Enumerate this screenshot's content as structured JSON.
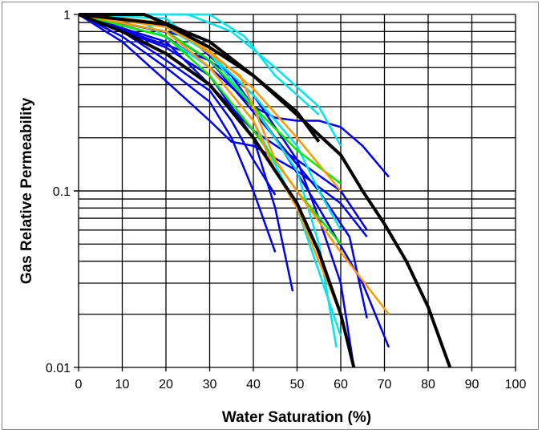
{
  "chart_data": {
    "type": "line",
    "title": "",
    "xlabel": "Water Saturation (%)",
    "ylabel": "Gas Relative Permeability",
    "xlim": [
      0,
      100
    ],
    "ylim": [
      0.01,
      1
    ],
    "yscale": "log",
    "grid": true,
    "legend": "none",
    "xticks": [
      "0",
      "10",
      "20",
      "30",
      "40",
      "50",
      "60",
      "70",
      "80",
      "90",
      "100"
    ],
    "yticks": [
      "0.01",
      "0.1",
      "1"
    ],
    "series": [
      {
        "color": "#0000ee",
        "points": [
          [
            0,
            1
          ],
          [
            10,
            0.75
          ],
          [
            20,
            0.5
          ],
          [
            30,
            0.32
          ],
          [
            35,
            0.2
          ],
          [
            40,
            0.1
          ],
          [
            45,
            0.045
          ]
        ]
      },
      {
        "color": "#0000ee",
        "points": [
          [
            0,
            1
          ],
          [
            10,
            0.8
          ],
          [
            20,
            0.55
          ],
          [
            30,
            0.37
          ],
          [
            35,
            0.25
          ],
          [
            40,
            0.15
          ],
          [
            45,
            0.095
          ]
        ]
      },
      {
        "color": "#0000ee",
        "points": [
          [
            0,
            1
          ],
          [
            10,
            0.7
          ],
          [
            20,
            0.42
          ],
          [
            30,
            0.25
          ],
          [
            35,
            0.19
          ],
          [
            40,
            0.18
          ],
          [
            50,
            0.13
          ],
          [
            60,
            0.085
          ],
          [
            66,
            0.055
          ]
        ]
      },
      {
        "color": "#0000ee",
        "points": [
          [
            0,
            1
          ],
          [
            20,
            0.7
          ],
          [
            30,
            0.4
          ],
          [
            40,
            0.22
          ],
          [
            50,
            0.15
          ],
          [
            60,
            0.1
          ],
          [
            66,
            0.06
          ]
        ]
      },
      {
        "color": "#0000ee",
        "points": [
          [
            0,
            1
          ],
          [
            20,
            0.75
          ],
          [
            30,
            0.5
          ],
          [
            40,
            0.3
          ],
          [
            45,
            0.26
          ],
          [
            50,
            0.25
          ],
          [
            55,
            0.25
          ],
          [
            60,
            0.23
          ],
          [
            65,
            0.18
          ],
          [
            71,
            0.12
          ]
        ]
      },
      {
        "color": "#0000ee",
        "points": [
          [
            0,
            1
          ],
          [
            20,
            0.65
          ],
          [
            30,
            0.45
          ],
          [
            40,
            0.2
          ],
          [
            45,
            0.08
          ],
          [
            49,
            0.027
          ]
        ]
      },
      {
        "color": "#0000ee",
        "points": [
          [
            0,
            1
          ],
          [
            20,
            0.8
          ],
          [
            35,
            0.45
          ],
          [
            45,
            0.2
          ],
          [
            55,
            0.08
          ],
          [
            65,
            0.03
          ],
          [
            71,
            0.013
          ]
        ]
      },
      {
        "color": "#0000ee",
        "points": [
          [
            0,
            1
          ],
          [
            25,
            0.75
          ],
          [
            40,
            0.35
          ],
          [
            50,
            0.15
          ],
          [
            55,
            0.07
          ],
          [
            60,
            0.03
          ],
          [
            63,
            0.01
          ]
        ]
      },
      {
        "color": "#0000ee",
        "points": [
          [
            0,
            1
          ],
          [
            30,
            0.55
          ],
          [
            45,
            0.2
          ],
          [
            55,
            0.1
          ],
          [
            62,
            0.055
          ],
          [
            66,
            0.019
          ]
        ]
      },
      {
        "color": "#00e5ee",
        "points": [
          [
            0,
            1
          ],
          [
            25,
            1
          ],
          [
            35,
            0.8
          ],
          [
            45,
            0.5
          ],
          [
            55,
            0.3
          ],
          [
            60,
            0.18
          ]
        ]
      },
      {
        "color": "#00e5ee",
        "points": [
          [
            0,
            1
          ],
          [
            30,
            1
          ],
          [
            38,
            0.75
          ],
          [
            45,
            0.45
          ],
          [
            50,
            0.35
          ],
          [
            55,
            0.27
          ]
        ]
      },
      {
        "color": "#00e5ee",
        "points": [
          [
            0,
            1
          ],
          [
            20,
            0.95
          ],
          [
            30,
            0.6
          ],
          [
            40,
            0.3
          ],
          [
            50,
            0.13
          ],
          [
            55,
            0.05
          ],
          [
            59,
            0.013
          ]
        ]
      },
      {
        "color": "#00e5ee",
        "points": [
          [
            0,
            1
          ],
          [
            15,
            0.9
          ],
          [
            30,
            0.5
          ],
          [
            40,
            0.25
          ],
          [
            50,
            0.08
          ],
          [
            55,
            0.035
          ],
          [
            60,
            0.015
          ]
        ]
      },
      {
        "color": "#00e5ee",
        "points": [
          [
            0,
            1
          ],
          [
            20,
            0.85
          ],
          [
            30,
            0.6
          ],
          [
            40,
            0.35
          ],
          [
            50,
            0.18
          ],
          [
            55,
            0.1
          ],
          [
            60,
            0.06
          ]
        ]
      },
      {
        "color": "#00ee00",
        "points": [
          [
            0,
            1
          ],
          [
            20,
            0.8
          ],
          [
            30,
            0.55
          ],
          [
            40,
            0.3
          ],
          [
            50,
            0.17
          ],
          [
            60,
            0.11
          ]
        ]
      },
      {
        "color": "#00ee00",
        "points": [
          [
            0,
            1
          ],
          [
            20,
            0.75
          ],
          [
            30,
            0.45
          ],
          [
            40,
            0.22
          ],
          [
            50,
            0.1
          ],
          [
            60,
            0.05
          ]
        ]
      },
      {
        "color": "#ff9900",
        "points": [
          [
            0,
            1
          ],
          [
            20,
            0.85
          ],
          [
            30,
            0.62
          ],
          [
            40,
            0.38
          ],
          [
            50,
            0.2
          ],
          [
            60,
            0.1
          ]
        ]
      },
      {
        "color": "#ff9900",
        "points": [
          [
            0,
            1
          ],
          [
            20,
            0.9
          ],
          [
            30,
            0.6
          ],
          [
            37,
            0.45
          ],
          [
            40,
            0.3
          ],
          [
            45,
            0.15
          ],
          [
            50,
            0.1
          ],
          [
            60,
            0.045
          ],
          [
            71,
            0.02
          ]
        ]
      },
      {
        "color": "#ff9900",
        "points": [
          [
            0,
            1
          ],
          [
            20,
            0.8
          ],
          [
            30,
            0.5
          ],
          [
            40,
            0.25
          ],
          [
            45,
            0.13
          ],
          [
            50,
            0.08
          ],
          [
            55,
            0.04
          ],
          [
            60,
            0.02
          ]
        ]
      },
      {
        "color": "#000000",
        "bold": true,
        "points": [
          [
            0,
            1
          ],
          [
            15,
            1
          ],
          [
            30,
            0.7
          ],
          [
            40,
            0.45
          ],
          [
            50,
            0.27
          ],
          [
            60,
            0.16
          ],
          [
            65,
            0.1
          ],
          [
            70,
            0.065
          ],
          [
            75,
            0.04
          ],
          [
            80,
            0.022
          ],
          [
            85,
            0.01
          ]
        ]
      },
      {
        "color": "#000000",
        "bold": true,
        "points": [
          [
            0,
            1
          ],
          [
            20,
            0.88
          ],
          [
            30,
            0.65
          ],
          [
            40,
            0.45
          ],
          [
            50,
            0.28
          ],
          [
            55,
            0.19
          ]
        ]
      },
      {
        "color": "#000000",
        "bold": true,
        "points": [
          [
            0,
            1
          ],
          [
            10,
            0.8
          ],
          [
            20,
            0.6
          ],
          [
            30,
            0.4
          ],
          [
            40,
            0.2
          ],
          [
            45,
            0.13
          ],
          [
            50,
            0.085
          ],
          [
            55,
            0.045
          ],
          [
            60,
            0.02
          ],
          [
            63,
            0.01
          ]
        ]
      }
    ]
  }
}
